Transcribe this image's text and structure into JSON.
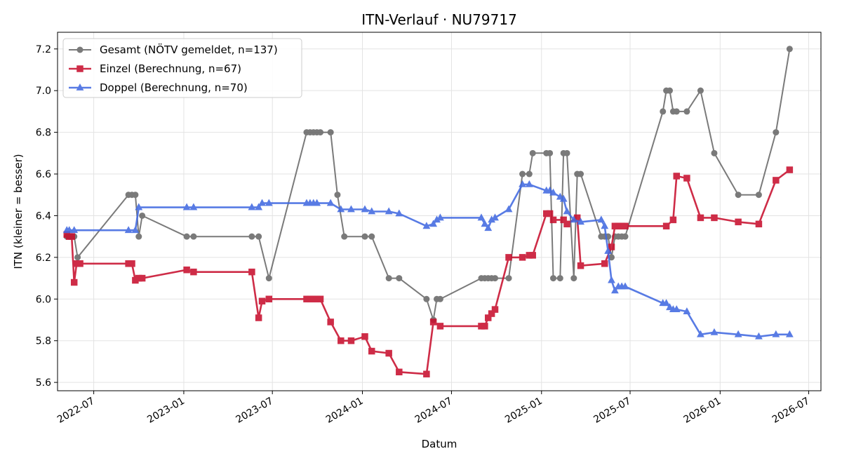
{
  "chart_data": {
    "type": "line",
    "title": "ITN-Verlauf · NU79717",
    "xlabel": "Datum",
    "ylabel": "ITN  (kleiner = besser)",
    "x_type": "date",
    "xlim": [
      "2022-04-18",
      "2026-07-26"
    ],
    "ylim": [
      5.56,
      7.28
    ],
    "grid": true,
    "legend_position": "top-left",
    "x_ticks": [
      "2022-07-01",
      "2023-01-01",
      "2023-07-01",
      "2024-01-01",
      "2024-07-01",
      "2025-01-01",
      "2025-07-01",
      "2026-01-01",
      "2026-07-01"
    ],
    "x_tick_labels": [
      "2022-07",
      "2023-01",
      "2023-07",
      "2024-01",
      "2024-07",
      "2025-01",
      "2025-07",
      "2026-01",
      "2026-07"
    ],
    "y_ticks": [
      5.6,
      5.8,
      6.0,
      6.2,
      6.4,
      6.6,
      6.8,
      7.0,
      7.2
    ],
    "y_tick_labels": [
      "5.6",
      "5.8",
      "6.0",
      "6.2",
      "6.4",
      "6.6",
      "6.8",
      "7.0",
      "7.2"
    ],
    "series": [
      {
        "name": "Gesamt (NÖTV gemeldet, n=137)",
        "color": "#555555",
        "marker": "circle",
        "x": [
          "2022-05-07",
          "2022-05-12",
          "2022-05-17",
          "2022-05-22",
          "2022-05-29",
          "2022-09-10",
          "2022-09-17",
          "2022-09-24",
          "2022-10-01",
          "2022-10-08",
          "2023-01-07",
          "2023-01-21",
          "2023-05-20",
          "2023-06-03",
          "2023-06-24",
          "2023-09-09",
          "2023-09-16",
          "2023-09-23",
          "2023-09-30",
          "2023-10-07",
          "2023-10-28",
          "2023-11-11",
          "2023-11-25",
          "2024-01-06",
          "2024-01-20",
          "2024-02-24",
          "2024-03-16",
          "2024-05-11",
          "2024-05-25",
          "2024-06-01",
          "2024-06-08",
          "2024-08-31",
          "2024-09-07",
          "2024-09-14",
          "2024-09-21",
          "2024-09-28",
          "2024-10-26",
          "2024-11-23",
          "2024-12-07",
          "2024-12-14",
          "2025-01-11",
          "2025-01-18",
          "2025-01-25",
          "2025-02-08",
          "2025-02-15",
          "2025-02-22",
          "2025-03-08",
          "2025-03-15",
          "2025-03-22",
          "2025-05-03",
          "2025-05-10",
          "2025-05-17",
          "2025-05-24",
          "2025-05-31",
          "2025-06-07",
          "2025-06-14",
          "2025-06-21",
          "2025-09-06",
          "2025-09-13",
          "2025-09-20",
          "2025-09-27",
          "2025-10-04",
          "2025-10-25",
          "2025-11-22",
          "2025-12-20",
          "2026-02-07",
          "2026-03-21",
          "2026-04-25",
          "2026-05-23"
        ],
        "y": [
          6.3,
          6.3,
          6.3,
          6.3,
          6.2,
          6.5,
          6.5,
          6.5,
          6.3,
          6.4,
          6.3,
          6.3,
          6.3,
          6.3,
          6.1,
          6.8,
          6.8,
          6.8,
          6.8,
          6.8,
          6.8,
          6.5,
          6.3,
          6.3,
          6.3,
          6.1,
          6.1,
          6.0,
          5.9,
          6.0,
          6.0,
          6.1,
          6.1,
          6.1,
          6.1,
          6.1,
          6.1,
          6.6,
          6.6,
          6.7,
          6.7,
          6.7,
          6.1,
          6.1,
          6.7,
          6.7,
          6.1,
          6.6,
          6.6,
          6.3,
          6.3,
          6.3,
          6.2,
          6.3,
          6.3,
          6.3,
          6.3,
          6.9,
          7.0,
          7.0,
          6.9,
          6.9,
          6.9,
          7.0,
          6.7,
          6.5,
          6.5,
          6.8,
          7.2
        ]
      },
      {
        "name": "Einzel (Berechnung, n=67)",
        "color": "#c8102e",
        "marker": "square",
        "x": [
          "2022-05-07",
          "2022-05-12",
          "2022-05-17",
          "2022-05-22",
          "2022-05-27",
          "2022-06-03",
          "2022-09-10",
          "2022-09-17",
          "2022-09-24",
          "2022-10-01",
          "2022-10-08",
          "2023-01-07",
          "2023-01-21",
          "2023-05-20",
          "2023-06-03",
          "2023-06-10",
          "2023-06-24",
          "2023-09-09",
          "2023-09-16",
          "2023-09-23",
          "2023-09-30",
          "2023-10-07",
          "2023-10-28",
          "2023-11-18",
          "2023-12-09",
          "2024-01-06",
          "2024-01-20",
          "2024-02-24",
          "2024-03-16",
          "2024-05-11",
          "2024-05-25",
          "2024-06-08",
          "2024-08-31",
          "2024-09-07",
          "2024-09-14",
          "2024-09-21",
          "2024-09-28",
          "2024-10-26",
          "2024-11-23",
          "2024-12-07",
          "2024-12-14",
          "2025-01-11",
          "2025-01-18",
          "2025-01-25",
          "2025-02-15",
          "2025-02-22",
          "2025-03-15",
          "2025-03-22",
          "2025-05-10",
          "2025-05-24",
          "2025-05-31",
          "2025-06-07",
          "2025-06-14",
          "2025-06-21",
          "2025-09-13",
          "2025-09-27",
          "2025-10-04",
          "2025-10-25",
          "2025-11-22",
          "2025-12-20",
          "2026-02-07",
          "2026-03-21",
          "2026-04-25",
          "2026-05-23"
        ],
        "y": [
          6.31,
          6.3,
          6.3,
          6.08,
          6.17,
          6.17,
          6.17,
          6.17,
          6.09,
          6.1,
          6.1,
          6.14,
          6.13,
          6.13,
          5.91,
          5.99,
          6.0,
          6.0,
          6.0,
          6.0,
          6.0,
          6.0,
          5.89,
          5.8,
          5.8,
          5.82,
          5.75,
          5.74,
          5.65,
          5.64,
          5.89,
          5.87,
          5.87,
          5.87,
          5.91,
          5.93,
          5.95,
          6.2,
          6.2,
          6.21,
          6.21,
          6.41,
          6.41,
          6.38,
          6.38,
          6.36,
          6.39,
          6.16,
          6.17,
          6.25,
          6.35,
          6.35,
          6.35,
          6.35,
          6.35,
          6.38,
          6.59,
          6.58,
          6.39,
          6.39,
          6.37,
          6.36,
          6.57,
          6.62
        ]
      },
      {
        "name": "Doppel (Berechnung, n=70)",
        "color": "#4169e1",
        "marker": "triangle",
        "x": [
          "2022-05-07",
          "2022-05-12",
          "2022-05-22",
          "2022-09-10",
          "2022-09-24",
          "2022-10-01",
          "2023-01-07",
          "2023-01-21",
          "2023-05-20",
          "2023-06-03",
          "2023-06-10",
          "2023-06-24",
          "2023-09-09",
          "2023-09-16",
          "2023-09-23",
          "2023-09-30",
          "2023-10-28",
          "2023-11-18",
          "2023-12-09",
          "2024-01-06",
          "2024-01-20",
          "2024-02-24",
          "2024-03-16",
          "2024-05-11",
          "2024-05-25",
          "2024-06-01",
          "2024-06-08",
          "2024-08-31",
          "2024-09-07",
          "2024-09-14",
          "2024-09-21",
          "2024-09-28",
          "2024-10-26",
          "2024-11-23",
          "2024-12-07",
          "2025-01-11",
          "2025-01-18",
          "2025-01-25",
          "2025-02-08",
          "2025-02-15",
          "2025-02-22",
          "2025-03-08",
          "2025-03-22",
          "2025-05-03",
          "2025-05-10",
          "2025-05-17",
          "2025-05-24",
          "2025-05-31",
          "2025-06-07",
          "2025-06-14",
          "2025-06-21",
          "2025-09-06",
          "2025-09-13",
          "2025-09-20",
          "2025-09-27",
          "2025-10-04",
          "2025-10-25",
          "2025-11-22",
          "2025-12-20",
          "2026-02-07",
          "2026-03-21",
          "2026-04-25",
          "2026-05-23"
        ],
        "y": [
          6.33,
          6.33,
          6.33,
          6.33,
          6.33,
          6.44,
          6.44,
          6.44,
          6.44,
          6.44,
          6.46,
          6.46,
          6.46,
          6.46,
          6.46,
          6.46,
          6.46,
          6.43,
          6.43,
          6.43,
          6.42,
          6.42,
          6.41,
          6.35,
          6.36,
          6.38,
          6.39,
          6.39,
          6.36,
          6.34,
          6.38,
          6.39,
          6.43,
          6.55,
          6.55,
          6.52,
          6.52,
          6.51,
          6.49,
          6.48,
          6.42,
          6.38,
          6.37,
          6.38,
          6.35,
          6.23,
          6.09,
          6.04,
          6.06,
          6.06,
          6.06,
          5.98,
          5.98,
          5.96,
          5.95,
          5.95,
          5.94,
          5.83,
          5.84,
          5.83,
          5.82,
          5.83,
          5.83
        ]
      }
    ]
  }
}
